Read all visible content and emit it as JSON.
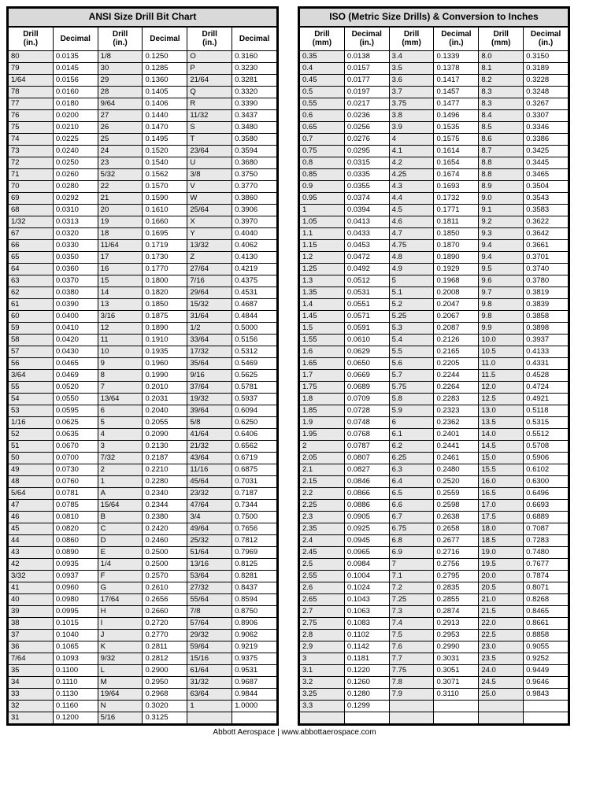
{
  "footer": "Abbott Aerospace | www.abbottaerospace.com",
  "ansi": {
    "title": "ANSI Size Drill Bit Chart",
    "headers": [
      "Drill (in.)",
      "Decimal",
      "Drill (in.)",
      "Decimal",
      "Drill (in.)",
      "Decimal"
    ],
    "rows": [
      [
        "80",
        "0.0135",
        "1/8",
        "0.1250",
        "O",
        "0.3160"
      ],
      [
        "79",
        "0.0145",
        "30",
        "0.1285",
        "P",
        "0.3230"
      ],
      [
        "1/64",
        "0.0156",
        "29",
        "0.1360",
        "21/64",
        "0.3281"
      ],
      [
        "78",
        "0.0160",
        "28",
        "0.1405",
        "Q",
        "0.3320"
      ],
      [
        "77",
        "0.0180",
        "9/64",
        "0.1406",
        "R",
        "0.3390"
      ],
      [
        "76",
        "0.0200",
        "27",
        "0.1440",
        "11/32",
        "0.3437"
      ],
      [
        "75",
        "0.0210",
        "26",
        "0.1470",
        "S",
        "0.3480"
      ],
      [
        "74",
        "0.0225",
        "25",
        "0.1495",
        "T",
        "0.3580"
      ],
      [
        "73",
        "0.0240",
        "24",
        "0.1520",
        "23/64",
        "0.3594"
      ],
      [
        "72",
        "0.0250",
        "23",
        "0.1540",
        "U",
        "0.3680"
      ],
      [
        "71",
        "0.0260",
        "5/32",
        "0.1562",
        "3/8",
        "0.3750"
      ],
      [
        "70",
        "0.0280",
        "22",
        "0.1570",
        "V",
        "0.3770"
      ],
      [
        "69",
        "0.0292",
        "21",
        "0.1590",
        "W",
        "0.3860"
      ],
      [
        "68",
        "0.0310",
        "20",
        "0.1610",
        "25/64",
        "0.3906"
      ],
      [
        "1/32",
        "0.0313",
        "19",
        "0.1660",
        "X",
        "0.3970"
      ],
      [
        "67",
        "0.0320",
        "18",
        "0.1695",
        "Y",
        "0.4040"
      ],
      [
        "66",
        "0.0330",
        "11/64",
        "0.1719",
        "13/32",
        "0.4062"
      ],
      [
        "65",
        "0.0350",
        "17",
        "0.1730",
        "Z",
        "0.4130"
      ],
      [
        "64",
        "0.0360",
        "16",
        "0.1770",
        "27/64",
        "0.4219"
      ],
      [
        "63",
        "0.0370",
        "15",
        "0.1800",
        "7/16",
        "0.4375"
      ],
      [
        "62",
        "0.0380",
        "14",
        "0.1820",
        "29/64",
        "0.4531"
      ],
      [
        "61",
        "0.0390",
        "13",
        "0.1850",
        "15/32",
        "0.4687"
      ],
      [
        "60",
        "0.0400",
        "3/16",
        "0.1875",
        "31/64",
        "0.4844"
      ],
      [
        "59",
        "0.0410",
        "12",
        "0.1890",
        "1/2",
        "0.5000"
      ],
      [
        "58",
        "0.0420",
        "11",
        "0.1910",
        "33/64",
        "0.5156"
      ],
      [
        "57",
        "0.0430",
        "10",
        "0.1935",
        "17/32",
        "0.5312"
      ],
      [
        "56",
        "0.0465",
        "9",
        "0.1960",
        "35/64",
        "0.5469"
      ],
      [
        "3/64",
        "0.0469",
        "8",
        "0.1990",
        "9/16",
        "0.5625"
      ],
      [
        "55",
        "0.0520",
        "7",
        "0.2010",
        "37/64",
        "0.5781"
      ],
      [
        "54",
        "0.0550",
        "13/64",
        "0.2031",
        "19/32",
        "0.5937"
      ],
      [
        "53",
        "0.0595",
        "6",
        "0.2040",
        "39/64",
        "0.6094"
      ],
      [
        "1/16",
        "0.0625",
        "5",
        "0.2055",
        "5/8",
        "0.6250"
      ],
      [
        "52",
        "0.0635",
        "4",
        "0.2090",
        "41/64",
        "0.6406"
      ],
      [
        "51",
        "0.0670",
        "3",
        "0.2130",
        "21/32",
        "0.6562"
      ],
      [
        "50",
        "0.0700",
        "7/32",
        "0.2187",
        "43/64",
        "0.6719"
      ],
      [
        "49",
        "0.0730",
        "2",
        "0.2210",
        "11/16",
        "0.6875"
      ],
      [
        "48",
        "0.0760",
        "1",
        "0.2280",
        "45/64",
        "0.7031"
      ],
      [
        "5/64",
        "0.0781",
        "A",
        "0.2340",
        "23/32",
        "0.7187"
      ],
      [
        "47",
        "0.0785",
        "15/64",
        "0.2344",
        "47/64",
        "0.7344"
      ],
      [
        "46",
        "0.0810",
        "B",
        "0.2380",
        "3/4",
        "0.7500"
      ],
      [
        "45",
        "0.0820",
        "C",
        "0.2420",
        "49/64",
        "0.7656"
      ],
      [
        "44",
        "0.0860",
        "D",
        "0.2460",
        "25/32",
        "0.7812"
      ],
      [
        "43",
        "0.0890",
        "E",
        "0.2500",
        "51/64",
        "0.7969"
      ],
      [
        "42",
        "0.0935",
        "1/4",
        "0.2500",
        "13/16",
        "0.8125"
      ],
      [
        "3/32",
        "0.0937",
        "F",
        "0.2570",
        "53/64",
        "0.8281"
      ],
      [
        "41",
        "0.0960",
        "G",
        "0.2610",
        "27/32",
        "0.8437"
      ],
      [
        "40",
        "0.0980",
        "17/64",
        "0.2656",
        "55/64",
        "0.8594"
      ],
      [
        "39",
        "0.0995",
        "H",
        "0.2660",
        "7/8",
        "0.8750"
      ],
      [
        "38",
        "0.1015",
        "I",
        "0.2720",
        "57/64",
        "0.8906"
      ],
      [
        "37",
        "0.1040",
        "J",
        "0.2770",
        "29/32",
        "0.9062"
      ],
      [
        "36",
        "0.1065",
        "K",
        "0.2811",
        "59/64",
        "0.9219"
      ],
      [
        "7/64",
        "0.1093",
        "9/32",
        "0.2812",
        "15/16",
        "0.9375"
      ],
      [
        "35",
        "0.1100",
        "L",
        "0.2900",
        "61/64",
        "0.9531"
      ],
      [
        "34",
        "0.1110",
        "M",
        "0.2950",
        "31/32",
        "0.9687"
      ],
      [
        "33",
        "0.1130",
        "19/64",
        "0.2968",
        "63/64",
        "0.9844"
      ],
      [
        "32",
        "0.1160",
        "N",
        "0.3020",
        "1",
        "1.0000"
      ],
      [
        "31",
        "0.1200",
        "5/16",
        "0.3125",
        "",
        ""
      ]
    ]
  },
  "iso": {
    "title": "ISO (Metric Size Drills) & Conversion to Inches",
    "headers": [
      "Drill (mm)",
      "Decimal (in.)",
      "Drill (mm)",
      "Decimal (in.)",
      "Drill (mm)",
      "Decimal (in.)"
    ],
    "rows": [
      [
        "0.35",
        "0.0138",
        "3.4",
        "0.1339",
        "8.0",
        "0.3150"
      ],
      [
        "0.4",
        "0.0157",
        "3.5",
        "0.1378",
        "8.1",
        "0.3189"
      ],
      [
        "0.45",
        "0.0177",
        "3.6",
        "0.1417",
        "8.2",
        "0.3228"
      ],
      [
        "0.5",
        "0.0197",
        "3.7",
        "0.1457",
        "8.3",
        "0.3248"
      ],
      [
        "0.55",
        "0.0217",
        "3.75",
        "0.1477",
        "8.3",
        "0.3267"
      ],
      [
        "0.6",
        "0.0236",
        "3.8",
        "0.1496",
        "8.4",
        "0.3307"
      ],
      [
        "0.65",
        "0.0256",
        "3.9",
        "0.1535",
        "8.5",
        "0.3346"
      ],
      [
        "0.7",
        "0.0276",
        "4",
        "0.1575",
        "8.6",
        "0.3386"
      ],
      [
        "0.75",
        "0.0295",
        "4.1",
        "0.1614",
        "8.7",
        "0.3425"
      ],
      [
        "0.8",
        "0.0315",
        "4.2",
        "0.1654",
        "8.8",
        "0.3445"
      ],
      [
        "0.85",
        "0.0335",
        "4.25",
        "0.1674",
        "8.8",
        "0.3465"
      ],
      [
        "0.9",
        "0.0355",
        "4.3",
        "0.1693",
        "8.9",
        "0.3504"
      ],
      [
        "0.95",
        "0.0374",
        "4.4",
        "0.1732",
        "9.0",
        "0.3543"
      ],
      [
        "1",
        "0.0394",
        "4.5",
        "0.1771",
        "9.1",
        "0.3583"
      ],
      [
        "1.05",
        "0.0413",
        "4.6",
        "0.1811",
        "9.2",
        "0.3622"
      ],
      [
        "1.1",
        "0.0433",
        "4.7",
        "0.1850",
        "9.3",
        "0.3642"
      ],
      [
        "1.15",
        "0.0453",
        "4.75",
        "0.1870",
        "9.4",
        "0.3661"
      ],
      [
        "1.2",
        "0.0472",
        "4.8",
        "0.1890",
        "9.4",
        "0.3701"
      ],
      [
        "1.25",
        "0.0492",
        "4.9",
        "0.1929",
        "9.5",
        "0.3740"
      ],
      [
        "1.3",
        "0.0512",
        "5",
        "0.1968",
        "9.6",
        "0.3780"
      ],
      [
        "1.35",
        "0.0531",
        "5.1",
        "0.2008",
        "9.7",
        "0.3819"
      ],
      [
        "1.4",
        "0.0551",
        "5.2",
        "0.2047",
        "9.8",
        "0.3839"
      ],
      [
        "1.45",
        "0.0571",
        "5.25",
        "0.2067",
        "9.8",
        "0.3858"
      ],
      [
        "1.5",
        "0.0591",
        "5.3",
        "0.2087",
        "9.9",
        "0.3898"
      ],
      [
        "1.55",
        "0.0610",
        "5.4",
        "0.2126",
        "10.0",
        "0.3937"
      ],
      [
        "1.6",
        "0.0629",
        "5.5",
        "0.2165",
        "10.5",
        "0.4133"
      ],
      [
        "1.65",
        "0.0650",
        "5.6",
        "0.2205",
        "11.0",
        "0.4331"
      ],
      [
        "1.7",
        "0.0669",
        "5.7",
        "0.2244",
        "11.5",
        "0.4528"
      ],
      [
        "1.75",
        "0.0689",
        "5.75",
        "0.2264",
        "12.0",
        "0.4724"
      ],
      [
        "1.8",
        "0.0709",
        "5.8",
        "0.2283",
        "12.5",
        "0.4921"
      ],
      [
        "1.85",
        "0.0728",
        "5.9",
        "0.2323",
        "13.0",
        "0.5118"
      ],
      [
        "1.9",
        "0.0748",
        "6",
        "0.2362",
        "13.5",
        "0.5315"
      ],
      [
        "1.95",
        "0.0768",
        "6.1",
        "0.2401",
        "14.0",
        "0.5512"
      ],
      [
        "2",
        "0.0787",
        "6.2",
        "0.2441",
        "14.5",
        "0.5708"
      ],
      [
        "2.05",
        "0.0807",
        "6.25",
        "0.2461",
        "15.0",
        "0.5906"
      ],
      [
        "2.1",
        "0.0827",
        "6.3",
        "0.2480",
        "15.5",
        "0.6102"
      ],
      [
        "2.15",
        "0.0846",
        "6.4",
        "0.2520",
        "16.0",
        "0.6300"
      ],
      [
        "2.2",
        "0.0866",
        "6.5",
        "0.2559",
        "16.5",
        "0.6496"
      ],
      [
        "2.25",
        "0.0886",
        "6.6",
        "0.2598",
        "17.0",
        "0.6693"
      ],
      [
        "2.3",
        "0.0905",
        "6.7",
        "0.2638",
        "17.5",
        "0.6889"
      ],
      [
        "2.35",
        "0.0925",
        "6.75",
        "0.2658",
        "18.0",
        "0.7087"
      ],
      [
        "2.4",
        "0.0945",
        "6.8",
        "0.2677",
        "18.5",
        "0.7283"
      ],
      [
        "2.45",
        "0.0965",
        "6.9",
        "0.2716",
        "19.0",
        "0.7480"
      ],
      [
        "2.5",
        "0.0984",
        "7",
        "0.2756",
        "19.5",
        "0.7677"
      ],
      [
        "2.55",
        "0.1004",
        "7.1",
        "0.2795",
        "20.0",
        "0.7874"
      ],
      [
        "2.6",
        "0.1024",
        "7.2",
        "0.2835",
        "20.5",
        "0.8071"
      ],
      [
        "2.65",
        "0.1043",
        "7.25",
        "0.2855",
        "21.0",
        "0.8268"
      ],
      [
        "2.7",
        "0.1063",
        "7.3",
        "0.2874",
        "21.5",
        "0.8465"
      ],
      [
        "2.75",
        "0.1083",
        "7.4",
        "0.2913",
        "22.0",
        "0.8661"
      ],
      [
        "2.8",
        "0.1102",
        "7.5",
        "0.2953",
        "22.5",
        "0.8858"
      ],
      [
        "2.9",
        "0.1142",
        "7.6",
        "0.2990",
        "23.0",
        "0.9055"
      ],
      [
        "3",
        "0.1181",
        "7.7",
        "0.3031",
        "23.5",
        "0.9252"
      ],
      [
        "3.1",
        "0.1220",
        "7.75",
        "0.3051",
        "24.0",
        "0.9449"
      ],
      [
        "3.2",
        "0.1260",
        "7.8",
        "0.3071",
        "24.5",
        "0.9646"
      ],
      [
        "3.25",
        "0.1280",
        "7.9",
        "0.3110",
        "25.0",
        "0.9843"
      ],
      [
        "3.3",
        "0.1299",
        "",
        "",
        "",
        ""
      ],
      [
        "",
        "",
        "",
        "",
        "",
        ""
      ]
    ]
  }
}
